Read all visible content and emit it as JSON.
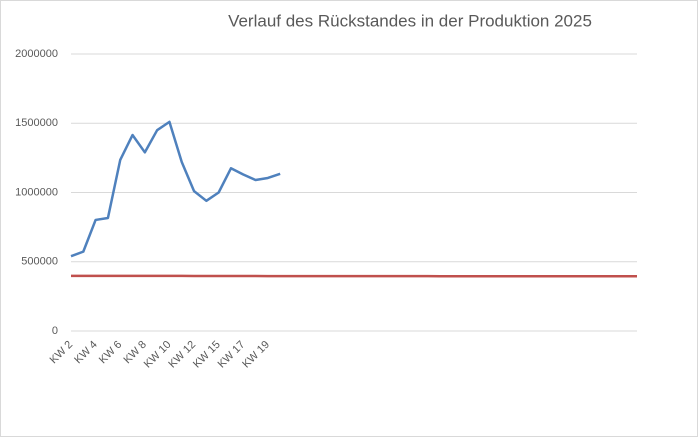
{
  "chart_data": {
    "type": "line",
    "title": "Verlauf des Rückstandes in der Produktion 2025",
    "categories": [
      "KW 2",
      null,
      "KW 4",
      null,
      "KW 6",
      null,
      "KW 8",
      null,
      "KW 10",
      null,
      "KW 12",
      null,
      "KW 15",
      null,
      "KW 17",
      null,
      "KW 19",
      null,
      null,
      null,
      null,
      null,
      null,
      null,
      null,
      null,
      null,
      null,
      null,
      null,
      null,
      null,
      null,
      null,
      null,
      null,
      null,
      null,
      null,
      null,
      null,
      null,
      null,
      null,
      null,
      null,
      null
    ],
    "series": [
      {
        "color": "#4f81bd",
        "values": [
          540000,
          573000,
          802000,
          816000,
          1235000,
          1415000,
          1290000,
          1450000,
          1510000,
          1220000,
          1010000,
          940000,
          1000000,
          1175000,
          1130000,
          1090000,
          1105000,
          1135000,
          null,
          null,
          null,
          null,
          null,
          null,
          null,
          null,
          null,
          null,
          null,
          null,
          null,
          null,
          null,
          null,
          null,
          null,
          null,
          null,
          null,
          null,
          null,
          null,
          null,
          null,
          null,
          null,
          null
        ]
      },
      {
        "color": "#c0504d",
        "values": [
          398000,
          398000,
          398000,
          398000,
          398000,
          398000,
          398000,
          398000,
          398000,
          398000,
          397000,
          397000,
          397000,
          397000,
          397000,
          397000,
          396000,
          396000,
          396000,
          396000,
          396000,
          396000,
          396000,
          396000,
          396000,
          396000,
          396000,
          396000,
          396000,
          396000,
          395000,
          395000,
          395000,
          395000,
          395000,
          395000,
          395000,
          395000,
          395000,
          395000,
          395000,
          395000,
          395000,
          395000,
          395000,
          395000,
          395000
        ]
      }
    ],
    "ylim": [
      0,
      2000000
    ],
    "yticks": [
      0,
      500000,
      1000000,
      1500000,
      2000000
    ],
    "grid": true
  }
}
